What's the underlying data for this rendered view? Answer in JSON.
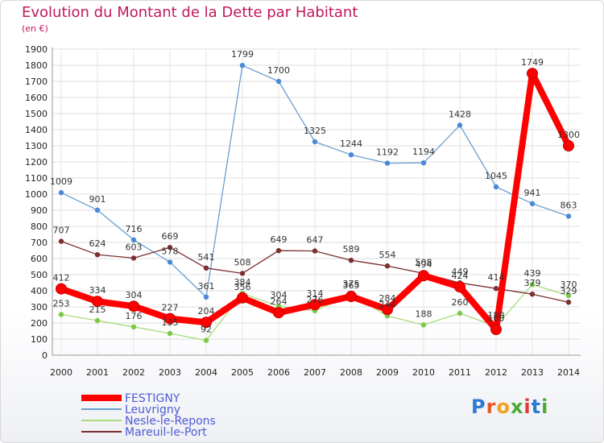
{
  "chart_data": {
    "type": "line",
    "title": "Evolution du Montant de la Dette par Habitant",
    "subtitle": "(en €)",
    "x": [
      "2000",
      "2001",
      "2002",
      "2003",
      "2004",
      "2005",
      "2006",
      "2007",
      "2008",
      "2009",
      "2010",
      "2011",
      "2012",
      "2013",
      "2014"
    ],
    "ylim": [
      0,
      1900
    ],
    "yticks": [
      0,
      100,
      200,
      300,
      400,
      500,
      600,
      700,
      800,
      900,
      1000,
      1100,
      1200,
      1300,
      1400,
      1500,
      1600,
      1700,
      1800,
      1900
    ],
    "grid": true,
    "legend_position": "bottom-left",
    "series": [
      {
        "name": "FESTIGNY",
        "color": "#ff0000",
        "point_color": "#ff0000",
        "emphasis": true,
        "values": [
          412,
          334,
          304,
          227,
          204,
          356,
          264,
          314,
          365,
          284,
          494,
          424,
          160,
          1749,
          1300
        ]
      },
      {
        "name": "Leuvrigny",
        "color": "#6b9ed2",
        "point_color": "#4a8ad4",
        "values": [
          1009,
          901,
          716,
          578,
          361,
          1799,
          1700,
          1325,
          1244,
          1192,
          1194,
          1428,
          1045,
          941,
          863
        ]
      },
      {
        "name": "Nesle-le-Repons",
        "color": "#a7dc7b",
        "point_color": "#7cc94a",
        "values": [
          253,
          215,
          176,
          135,
          92,
          384,
          304,
          276,
          375,
          244,
          188,
          260,
          180,
          439,
          370
        ]
      },
      {
        "name": "Mareuil-le-Port",
        "color": "#7b2f30",
        "point_color": "#7b2f30",
        "values": [
          707,
          624,
          603,
          669,
          541,
          508,
          649,
          647,
          589,
          554,
          508,
          449,
          414,
          379,
          329
        ]
      }
    ]
  },
  "logo": {
    "text": "Proxiti",
    "letters": [
      "P",
      "r",
      "o",
      "x",
      "i",
      "t",
      "i"
    ],
    "colors": [
      "#2a7bd1",
      "#e8562a",
      "#f2a21b",
      "#4da633",
      "#e23a3a",
      "#2a7bd1",
      "#4da633"
    ]
  }
}
